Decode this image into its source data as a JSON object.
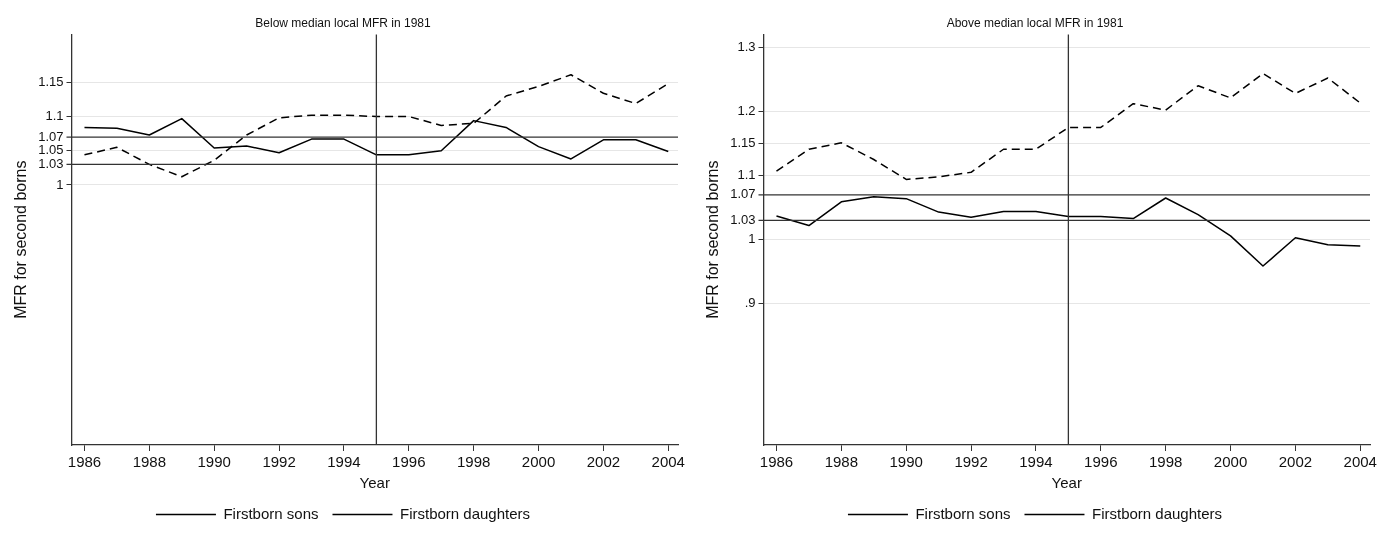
{
  "chart_data": [
    {
      "type": "line",
      "title": "Below median local MFR in 1981",
      "xlabel": "Year",
      "ylabel": "MFR for second borns",
      "x": [
        1986,
        1987,
        1988,
        1989,
        1990,
        1991,
        1992,
        1993,
        1994,
        1995,
        1996,
        1997,
        1998,
        1999,
        2000,
        2001,
        2002,
        2003,
        2004
      ],
      "series": [
        {
          "name": "Firstborn sons",
          "color": "#000000",
          "line_style": "solid",
          "values": [
            1.084,
            1.083,
            1.073,
            1.097,
            1.054,
            1.057,
            1.047,
            1.067,
            1.067,
            1.044,
            1.044,
            1.05,
            1.094,
            1.084,
            1.056,
            1.038,
            1.066,
            1.066,
            1.049
          ]
        },
        {
          "name": "Firstborn daughters",
          "color": "#000000",
          "line_style": "dashed",
          "values": [
            1.044,
            1.055,
            1.03,
            1.012,
            1.036,
            1.073,
            1.098,
            1.102,
            1.102,
            1.1,
            1.1,
            1.087,
            1.09,
            1.13,
            1.144,
            1.161,
            1.134,
            1.119,
            1.148
          ]
        }
      ],
      "xlim": [
        1985.6,
        2004.3
      ],
      "xticks": [
        1986,
        1988,
        1990,
        1992,
        1994,
        1996,
        1998,
        2000,
        2002,
        2004
      ],
      "ylim": [
        0.62,
        1.22
      ],
      "yticks": [
        1,
        1.05,
        1.1,
        1.15
      ],
      "ref_lines": [
        {
          "axis": "y",
          "value": 1.07,
          "label": "1.07",
          "color": "#333333"
        },
        {
          "axis": "y",
          "value": 1.03,
          "label": "1.03",
          "color": "#333333"
        },
        {
          "axis": "x",
          "value": 1995,
          "color": "#333333"
        }
      ],
      "grid": "y",
      "legend": "bottom",
      "marker": "none"
    },
    {
      "type": "line",
      "title": "Above median local MFR in 1981",
      "xlabel": "Year",
      "ylabel": "MFR for second borns",
      "x": [
        1986,
        1987,
        1988,
        1989,
        1990,
        1991,
        1992,
        1993,
        1994,
        1995,
        1996,
        1997,
        1998,
        1999,
        2000,
        2001,
        2002,
        2003,
        2004
      ],
      "series": [
        {
          "name": "Firstborn sons",
          "color": "#000000",
          "line_style": "solid",
          "values": [
            1.037,
            1.022,
            1.059,
            1.067,
            1.064,
            1.043,
            1.035,
            1.044,
            1.044,
            1.036,
            1.036,
            1.033,
            1.065,
            1.039,
            1.006,
            0.959,
            1.003,
            0.992,
            0.99
          ]
        },
        {
          "name": "Firstborn daughters",
          "color": "#000000",
          "line_style": "dashed",
          "values": [
            1.107,
            1.141,
            1.151,
            1.125,
            1.094,
            1.098,
            1.105,
            1.141,
            1.141,
            1.175,
            1.175,
            1.212,
            1.202,
            1.24,
            1.221,
            1.259,
            1.228,
            1.252,
            1.213
          ]
        }
      ],
      "xlim": [
        1985.6,
        2004.3
      ],
      "xticks": [
        1986,
        1988,
        1990,
        1992,
        1994,
        1996,
        1998,
        2000,
        2002,
        2004
      ],
      "ylim": [
        0.68,
        1.32
      ],
      "yticks": [
        {
          "value": 0.9,
          "label": ".9"
        },
        1,
        1.1,
        1.15,
        1.2,
        1.3
      ],
      "ref_lines": [
        {
          "axis": "y",
          "value": 1.07,
          "label": "1.07",
          "color": "#333333"
        },
        {
          "axis": "y",
          "value": 1.03,
          "label": "1.03",
          "color": "#333333"
        },
        {
          "axis": "x",
          "value": 1995,
          "color": "#333333"
        }
      ],
      "grid": "y",
      "legend": "bottom",
      "marker": "none"
    }
  ]
}
